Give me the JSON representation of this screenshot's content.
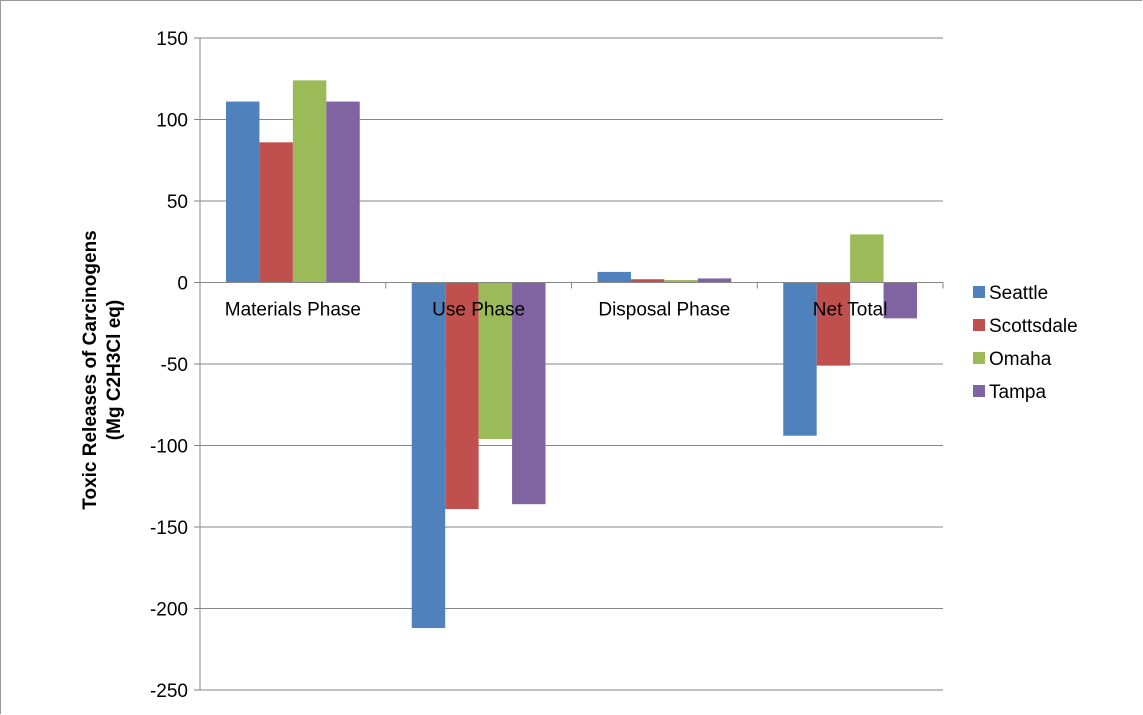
{
  "chart_data": {
    "type": "bar",
    "title": "",
    "xlabel": "",
    "ylabel_lines": [
      "Toxic Releases of Carcinogens",
      "(Mg C2H3Cl eq)"
    ],
    "categories": [
      "Materials Phase",
      "Use Phase",
      "Disposal Phase",
      "Net Total"
    ],
    "series": [
      {
        "name": "Seattle",
        "color": "#4f81bd",
        "values": [
          111,
          -212,
          6.5,
          -94
        ]
      },
      {
        "name": "Scottsdale",
        "color": "#c0504d",
        "values": [
          86,
          -139,
          2,
          -51
        ]
      },
      {
        "name": "Omaha",
        "color": "#9bbb59",
        "values": [
          124,
          -96,
          1.5,
          29.5
        ]
      },
      {
        "name": "Tampa",
        "color": "#8064a2",
        "values": [
          111,
          -136,
          2.5,
          -22
        ]
      }
    ],
    "ylim": [
      -250,
      150
    ],
    "yticks": [
      150,
      100,
      50,
      0,
      -50,
      -100,
      -150,
      -200,
      -250
    ],
    "grid": true,
    "legend_position": "right"
  }
}
